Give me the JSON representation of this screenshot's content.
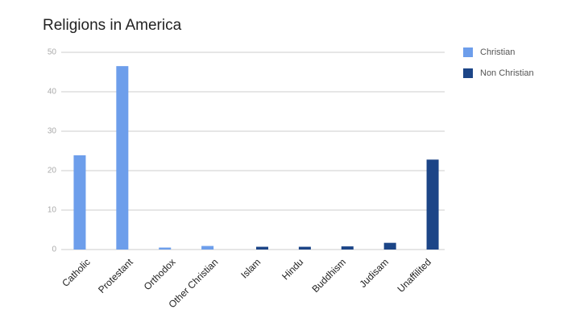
{
  "chart_data": {
    "type": "bar",
    "title": "Religions in America",
    "categories": [
      "Catholic",
      "Protestant",
      "Orthodox",
      "Other Christian",
      "Islam",
      "Hindu",
      "Buddhism",
      "Judisam",
      "Unaffilited"
    ],
    "series": [
      {
        "name": "Christian",
        "color": "#6d9eeb",
        "values": [
          23.9,
          46.5,
          0.5,
          0.9,
          null,
          null,
          null,
          null,
          null
        ]
      },
      {
        "name": "Non Christian",
        "color": "#1c4587",
        "values": [
          null,
          null,
          null,
          null,
          0.7,
          0.7,
          0.8,
          1.7,
          22.8
        ]
      }
    ],
    "ylim": [
      0,
      50
    ],
    "yticks": [
      0,
      10,
      20,
      30,
      40,
      50
    ],
    "grid": true,
    "legend": "right"
  }
}
